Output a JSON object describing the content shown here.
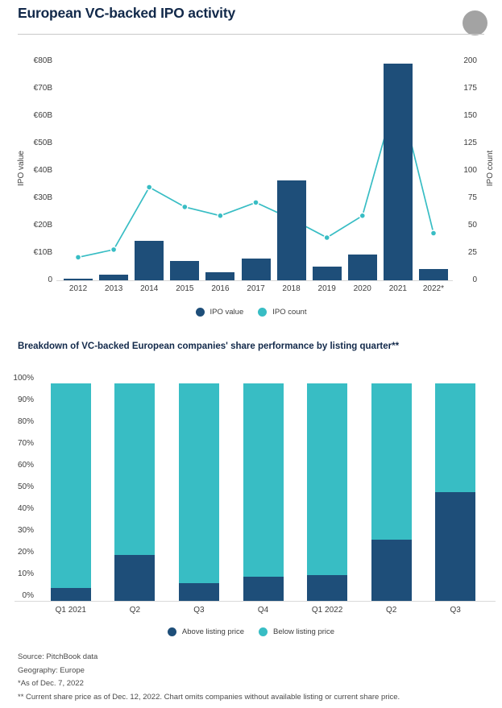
{
  "header": {
    "title": "European VC-backed IPO activity"
  },
  "colors": {
    "navy": "#1E4E79",
    "teal": "#38BDC4",
    "title-navy": "#12294A",
    "axis-text": "#3D3D3D",
    "footnote-text": "#4A4A4A",
    "axis-line": "#D9D9D9",
    "circle-gray": "#A3A3A3"
  },
  "chart_data": [
    {
      "type": "bar+line",
      "title": "European VC-backed IPO activity",
      "categories": [
        "2012",
        "2013",
        "2014",
        "2015",
        "2016",
        "2017",
        "2018",
        "2019",
        "2020",
        "2021",
        "2022*"
      ],
      "series": [
        {
          "name": "IPO value",
          "type": "bar",
          "axis": "left",
          "unit": "€B",
          "values": [
            0.7,
            2,
            14.5,
            7,
            3,
            8,
            36.5,
            5,
            9.5,
            79,
            4
          ]
        },
        {
          "name": "IPO count",
          "type": "line",
          "axis": "right",
          "values": [
            21,
            28,
            85,
            67,
            59,
            71,
            56,
            39,
            59,
            174,
            43
          ]
        }
      ],
      "left_axis": {
        "label": "IPO value",
        "min": 0,
        "max": 80,
        "tick_values": [
          80,
          70,
          60,
          50,
          40,
          30,
          20,
          10,
          0
        ],
        "tick_labels": [
          "€80B",
          "€70B",
          "€60B",
          "€50B",
          "€40B",
          "€30B",
          "€20B",
          "€10B",
          "0"
        ]
      },
      "right_axis": {
        "label": "IPO count",
        "min": 0,
        "max": 200,
        "tick_values": [
          200,
          175,
          150,
          125,
          100,
          75,
          50,
          25,
          0
        ],
        "tick_labels": [
          "200",
          "175",
          "150",
          "125",
          "100",
          "75",
          "50",
          "25",
          "0"
        ]
      },
      "legend": [
        "IPO value",
        "IPO count"
      ],
      "legend_position": "bottom",
      "grid": false
    },
    {
      "type": "stacked-bar",
      "title": "Breakdown of VC-backed European companies' share performance by listing quarter**",
      "categories": [
        "Q1 2021",
        "Q2",
        "Q3",
        "Q4",
        "Q1 2022",
        "Q2",
        "Q3"
      ],
      "series": [
        {
          "name": "Above listing price",
          "values": [
            6,
            21,
            8,
            11,
            12,
            28,
            50
          ]
        },
        {
          "name": "Below listing price",
          "values": [
            94,
            79,
            92,
            89,
            88,
            72,
            50
          ]
        }
      ],
      "y_axis": {
        "min": 0,
        "max": 100,
        "unit": "%",
        "tick_values": [
          100,
          90,
          80,
          70,
          60,
          50,
          40,
          30,
          20,
          10,
          0
        ],
        "tick_labels": [
          "100%",
          "90%",
          "80%",
          "70%",
          "60%",
          "50%",
          "40%",
          "30%",
          "20%",
          "10%",
          "0%"
        ]
      },
      "legend": [
        "Above listing price",
        "Below listing price"
      ],
      "legend_position": "bottom",
      "grid": false
    }
  ],
  "footnotes": [
    "Source: PitchBook data",
    "Geography: Europe",
    "*As of Dec. 7, 2022",
    "** Current share price as of Dec. 12, 2022. Chart omits companies without available listing or current share price."
  ]
}
